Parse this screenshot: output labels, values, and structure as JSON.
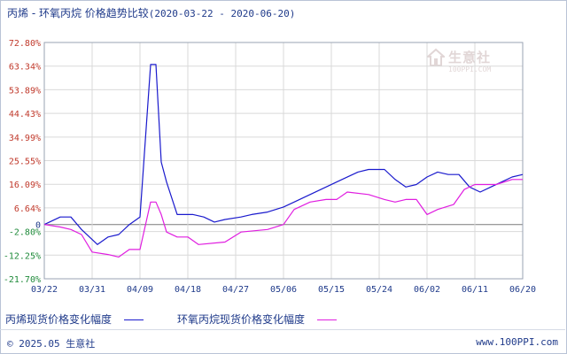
{
  "header": {
    "title": "丙烯 - 环氧丙烷 价格趋势比较",
    "date_range": "(2020-03-22 - 2020-06-20)"
  },
  "watermark": {
    "text": "生意社",
    "sub": "100PPI.COM"
  },
  "footer": {
    "copyright": "© 2025.05 生意社",
    "url": "www.100PPI.com"
  },
  "colors": {
    "series1": "#1a1acd",
    "series2": "#e01ee0",
    "y_positive_label": "#c0392b",
    "y_negative_label": "#1f8a3a",
    "grid": "#d9d9d9"
  },
  "chart_data": {
    "type": "line",
    "y_ticks": [
      "72.80%",
      "63.34%",
      "53.89%",
      "44.43%",
      "34.99%",
      "25.55%",
      "16.09%",
      "6.64%",
      "0",
      "-2.80%",
      "-12.25%",
      "-21.70%"
    ],
    "x_ticks": [
      "03/22",
      "03/31",
      "04/09",
      "04/18",
      "04/27",
      "05/06",
      "05/15",
      "05/24",
      "06/02",
      "06/11",
      "06/20"
    ],
    "ylim": [
      -21.7,
      72.8
    ],
    "x_range": [
      "2020-03-22",
      "2020-06-20"
    ],
    "grid": true,
    "legend_position": "bottom",
    "series": [
      {
        "name": "丙烯现货价格变化幅度",
        "x": [
          "2020-03-22",
          "2020-03-25",
          "2020-03-27",
          "2020-03-29",
          "2020-04-01",
          "2020-04-03",
          "2020-04-05",
          "2020-04-07",
          "2020-04-09",
          "2020-04-11",
          "2020-04-12",
          "2020-04-13",
          "2020-04-14",
          "2020-04-16",
          "2020-04-19",
          "2020-04-21",
          "2020-04-23",
          "2020-04-25",
          "2020-04-28",
          "2020-04-30",
          "2020-05-03",
          "2020-05-06",
          "2020-05-08",
          "2020-05-11",
          "2020-05-14",
          "2020-05-17",
          "2020-05-20",
          "2020-05-22",
          "2020-05-25",
          "2020-05-27",
          "2020-05-29",
          "2020-05-31",
          "2020-06-02",
          "2020-06-04",
          "2020-06-06",
          "2020-06-08",
          "2020-06-10",
          "2020-06-12",
          "2020-06-14",
          "2020-06-16",
          "2020-06-18",
          "2020-06-20"
        ],
        "values": [
          0,
          3,
          3,
          -2,
          -8,
          -5,
          -4,
          0,
          3,
          64,
          64,
          25,
          17,
          4,
          4,
          3,
          1,
          2,
          3,
          4,
          5,
          7,
          9,
          12,
          15,
          18,
          21,
          22,
          22,
          18,
          15,
          16,
          19,
          21,
          20,
          20,
          15,
          13,
          15,
          17,
          19,
          20
        ]
      },
      {
        "name": "环氧丙烷现货价格变化幅度",
        "x": [
          "2020-03-22",
          "2020-03-25",
          "2020-03-27",
          "2020-03-29",
          "2020-03-31",
          "2020-04-03",
          "2020-04-05",
          "2020-04-07",
          "2020-04-09",
          "2020-04-11",
          "2020-04-12",
          "2020-04-13",
          "2020-04-14",
          "2020-04-16",
          "2020-04-18",
          "2020-04-20",
          "2020-04-25",
          "2020-04-28",
          "2020-05-03",
          "2020-05-06",
          "2020-05-08",
          "2020-05-11",
          "2020-05-14",
          "2020-05-16",
          "2020-05-18",
          "2020-05-22",
          "2020-05-25",
          "2020-05-27",
          "2020-05-29",
          "2020-05-31",
          "2020-06-02",
          "2020-06-04",
          "2020-06-07",
          "2020-06-09",
          "2020-06-11",
          "2020-06-15",
          "2020-06-18",
          "2020-06-20"
        ],
        "values": [
          0,
          -1,
          -2,
          -4,
          -11,
          -12,
          -13,
          -10,
          -10,
          9,
          9,
          4,
          -3,
          -5,
          -5,
          -8,
          -7,
          -3,
          -2,
          0,
          6,
          9,
          10,
          10,
          13,
          12,
          10,
          9,
          10,
          10,
          4,
          6,
          8,
          14,
          16,
          16,
          18,
          18
        ]
      }
    ]
  }
}
